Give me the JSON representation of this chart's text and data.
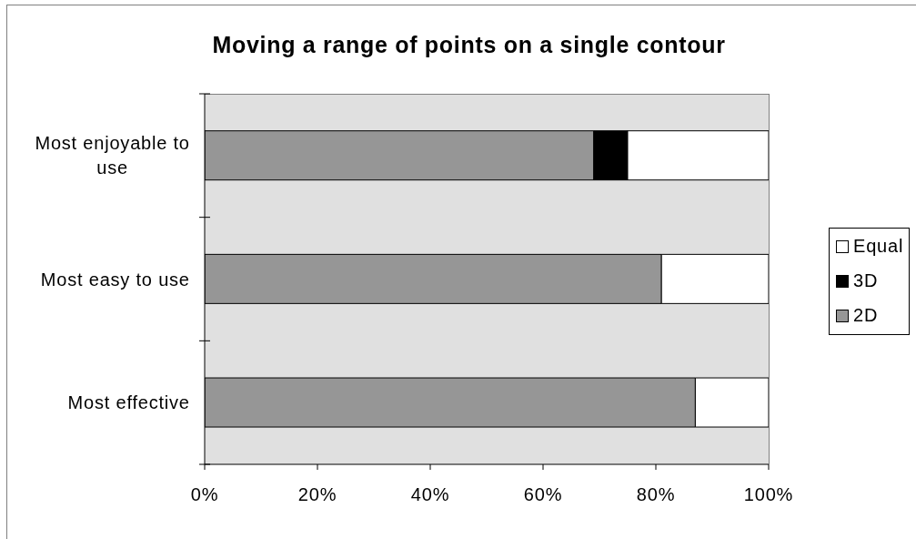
{
  "chart_data": {
    "type": "bar",
    "orientation": "horizontal",
    "stacked": true,
    "title": "Moving a range of points on a single contour",
    "categories": [
      "Most enjoyable to use",
      "Most easy to use",
      "Most effective"
    ],
    "series": [
      {
        "name": "2D",
        "color": "#969696",
        "values": [
          69,
          81,
          87
        ]
      },
      {
        "name": "3D",
        "color": "#000000",
        "values": [
          6,
          0,
          0
        ]
      },
      {
        "name": "Equal",
        "color": "#ffffff",
        "values": [
          25,
          19,
          13
        ]
      }
    ],
    "xlim": [
      0,
      100
    ],
    "xticks": [
      {
        "value": 0,
        "label": "0%"
      },
      {
        "value": 20,
        "label": "20%"
      },
      {
        "value": 40,
        "label": "40%"
      },
      {
        "value": 60,
        "label": "60%"
      },
      {
        "value": 80,
        "label": "80%"
      },
      {
        "value": 100,
        "label": "100%"
      }
    ],
    "legend": "right"
  }
}
